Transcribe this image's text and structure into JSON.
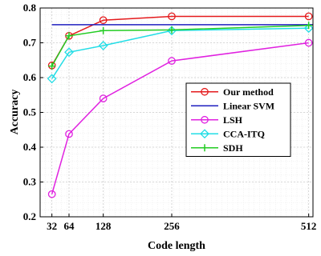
{
  "chart_data": {
    "type": "line",
    "title": "",
    "xlabel": "Code length",
    "ylabel": "Accuracy",
    "x": [
      32,
      64,
      128,
      256,
      512
    ],
    "xticks": [
      "32",
      "64",
      "128",
      "256",
      "512"
    ],
    "xlim": [
      10,
      520
    ],
    "ylim": [
      0.2,
      0.8
    ],
    "yticks": [
      "0.2",
      "0.3",
      "0.4",
      "0.5",
      "0.6",
      "0.7",
      "0.8"
    ],
    "grid": true,
    "legend_position": "right",
    "series": [
      {
        "name": "Our method",
        "color": "#e41a1c",
        "marker": "circle",
        "values": [
          0.635,
          0.72,
          0.765,
          0.776,
          0.776
        ]
      },
      {
        "name": "Linear SVM",
        "color": "#1f1fbf",
        "marker": "none",
        "values": [
          0.752,
          0.752,
          0.752,
          0.752,
          0.752
        ]
      },
      {
        "name": "LSH",
        "color": "#e020e0",
        "marker": "circle",
        "values": [
          0.265,
          0.438,
          0.54,
          0.648,
          0.7
        ]
      },
      {
        "name": "CCA-ITQ",
        "color": "#22dde6",
        "marker": "diamond",
        "values": [
          0.597,
          0.673,
          0.692,
          0.735,
          0.742
        ]
      },
      {
        "name": "SDH",
        "color": "#22cc22",
        "marker": "plus",
        "values": [
          0.633,
          0.72,
          0.735,
          0.737,
          0.75
        ]
      }
    ]
  }
}
